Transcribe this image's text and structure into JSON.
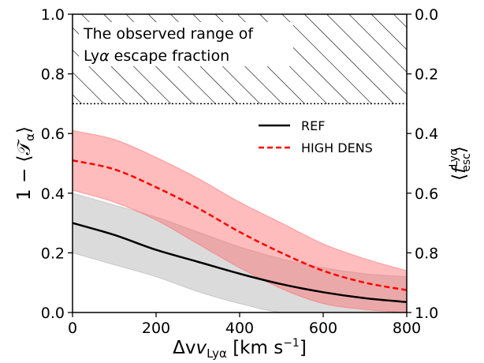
{
  "chart_data": {
    "type": "line",
    "xlabel": "Δv",
    "xlabel_sub": "Lyα",
    "xlabel_unit_prefix": " [km s",
    "xlabel_unit_exp": "−1",
    "xlabel_unit_suffix": "]",
    "ylabel": "1 − ⟨𝒯",
    "ylabel_sub": "α",
    "ylabel_close": "⟩",
    "y2label_open": "⟨",
    "y2label_f": "f",
    "y2label_sup": "Lyα",
    "y2label_sub": "esc",
    "y2label_close": "⟩",
    "xlim": [
      0,
      800
    ],
    "ylim": [
      0,
      1.0
    ],
    "xticks": [
      0,
      200,
      400,
      600,
      800
    ],
    "xtick_labels": [
      "0",
      "200",
      "400",
      "600",
      "800"
    ],
    "yticks": [
      0.0,
      0.2,
      0.4,
      0.6,
      0.8,
      1.0
    ],
    "ytick_labels": [
      "0.0",
      "0.2",
      "0.4",
      "0.6",
      "0.8",
      "1.0"
    ],
    "y2ticks": [
      0.0,
      0.2,
      0.4,
      0.6,
      0.8,
      1.0
    ],
    "y2tick_labels": [
      "1.0",
      "0.8",
      "0.6",
      "0.4",
      "0.2",
      "0.0"
    ],
    "legend_position": "upper-right",
    "grid": false,
    "series": [
      {
        "name": "REF",
        "color": "#000000",
        "dash": "solid",
        "band_color": "#b0b0b0",
        "x": [
          0,
          100,
          200,
          300,
          400,
          500,
          600,
          700,
          800
        ],
        "y": [
          0.3,
          0.26,
          0.21,
          0.17,
          0.13,
          0.095,
          0.068,
          0.048,
          0.035
        ],
        "lower": [
          0.2,
          0.16,
          0.12,
          0.07,
          0.03,
          0.0,
          0.0,
          0.0,
          0.0
        ],
        "upper": [
          0.4,
          0.36,
          0.32,
          0.27,
          0.22,
          0.18,
          0.15,
          0.13,
          0.12
        ]
      },
      {
        "name": "HIGH DENS",
        "color": "#ff0000",
        "dash": "dashed",
        "band_color": "#ff6b6b",
        "x": [
          0,
          100,
          200,
          300,
          400,
          500,
          600,
          700,
          800
        ],
        "y": [
          0.51,
          0.48,
          0.42,
          0.35,
          0.27,
          0.2,
          0.14,
          0.1,
          0.075
        ],
        "lower": [
          0.41,
          0.37,
          0.31,
          0.23,
          0.15,
          0.08,
          0.03,
          0.01,
          0.0
        ],
        "upper": [
          0.61,
          0.58,
          0.52,
          0.45,
          0.37,
          0.3,
          0.23,
          0.18,
          0.14
        ]
      }
    ],
    "hatched_region": {
      "y_from": 0.7,
      "y_to": 1.0,
      "label_line1": "The observed range of",
      "label_line2_prefix": "Ly",
      "label_line2_italic": "α",
      "label_line2_suffix": " escape fraction"
    }
  }
}
